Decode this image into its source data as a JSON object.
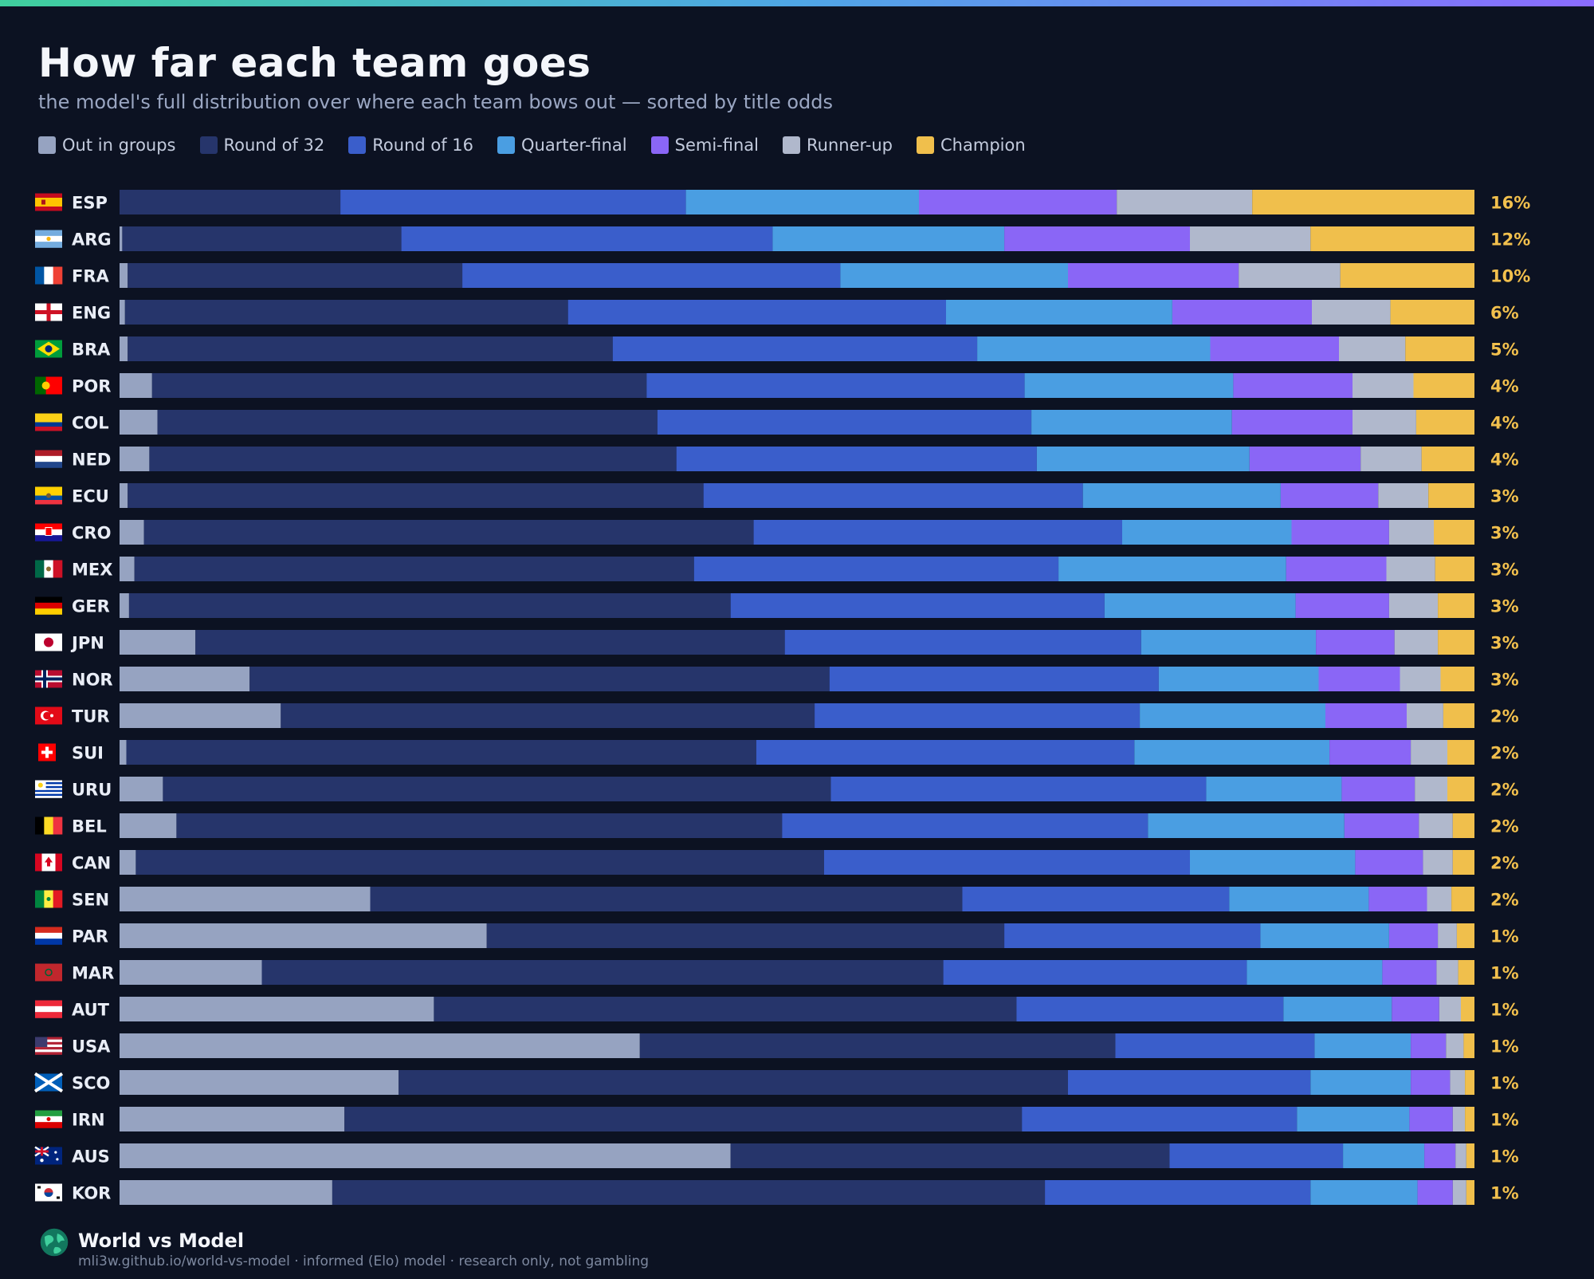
{
  "header": {
    "title": "How far each team goes",
    "subtitle": "the model's full distribution over where each team bows out — sorted by title odds"
  },
  "footer": {
    "brand": "World vs Model",
    "meta": "mli3w.github.io/world-vs-model · informed (Elo) model · research only, not gambling"
  },
  "colors": {
    "background": "#0c1222",
    "label": "#e9edf6",
    "percent": "#f2c04d"
  },
  "chart_data": {
    "type": "bar",
    "orientation": "horizontal",
    "stacked": true,
    "normalized": true,
    "title": "How far each team goes",
    "subtitle": "the model's full distribution over where each team bows out — sorted by title odds",
    "legend_position": "top-left",
    "grid": false,
    "xlim": [
      0,
      100
    ],
    "unit": "%",
    "stages": [
      {
        "name": "Out in groups",
        "color": "#96a3c1"
      },
      {
        "name": "Round of 32",
        "color": "#26356b"
      },
      {
        "name": "Round of 16",
        "color": "#3a5ecb"
      },
      {
        "name": "Quarter-final",
        "color": "#4a9ee2"
      },
      {
        "name": "Semi-final",
        "color": "#8a66f6"
      },
      {
        "name": "Runner-up",
        "color": "#b0b8cc"
      },
      {
        "name": "Champion",
        "color": "#f0bf4c"
      }
    ],
    "teams": [
      {
        "code": "ESP",
        "flag": "es-flag-icon",
        "label": "16%",
        "values": [
          0.0,
          16.3,
          25.5,
          17.2,
          14.6,
          10.0,
          16.4
        ]
      },
      {
        "code": "ARG",
        "flag": "ar-flag-icon",
        "label": "12%",
        "values": [
          0.2,
          20.6,
          27.4,
          17.1,
          13.7,
          8.9,
          12.1
        ]
      },
      {
        "code": "FRA",
        "flag": "fr-flag-icon",
        "label": "10%",
        "values": [
          0.6,
          24.7,
          27.9,
          16.8,
          12.6,
          7.5,
          9.9
        ]
      },
      {
        "code": "ENG",
        "flag": "eng-flag-icon",
        "label": "6%",
        "values": [
          0.4,
          32.7,
          27.9,
          16.7,
          10.3,
          5.8,
          6.2
        ]
      },
      {
        "code": "BRA",
        "flag": "br-flag-icon",
        "label": "5%",
        "values": [
          0.6,
          35.8,
          26.9,
          17.2,
          9.5,
          4.9,
          5.1
        ]
      },
      {
        "code": "POR",
        "flag": "pt-flag-icon",
        "label": "4%",
        "values": [
          2.4,
          36.5,
          27.9,
          15.4,
          8.8,
          4.5,
          4.5
        ]
      },
      {
        "code": "COL",
        "flag": "co-flag-icon",
        "label": "4%",
        "values": [
          2.8,
          36.9,
          27.6,
          14.8,
          8.9,
          4.7,
          4.3
        ]
      },
      {
        "code": "NED",
        "flag": "nl-flag-icon",
        "label": "4%",
        "values": [
          2.2,
          38.9,
          26.6,
          15.7,
          8.2,
          4.5,
          3.9
        ]
      },
      {
        "code": "ECU",
        "flag": "ec-flag-icon",
        "label": "3%",
        "values": [
          0.6,
          42.5,
          28.0,
          14.6,
          7.2,
          3.7,
          3.4
        ]
      },
      {
        "code": "CRO",
        "flag": "hr-flag-icon",
        "label": "3%",
        "values": [
          1.8,
          45.0,
          27.2,
          12.5,
          7.2,
          3.3,
          3.0
        ]
      },
      {
        "code": "MEX",
        "flag": "mx-flag-icon",
        "label": "3%",
        "values": [
          1.1,
          41.3,
          26.9,
          16.8,
          7.4,
          3.6,
          2.9
        ]
      },
      {
        "code": "GER",
        "flag": "de-flag-icon",
        "label": "3%",
        "values": [
          0.7,
          44.4,
          27.6,
          14.1,
          6.9,
          3.6,
          2.7
        ]
      },
      {
        "code": "JPN",
        "flag": "jp-flag-icon",
        "label": "3%",
        "values": [
          5.6,
          43.5,
          26.3,
          12.9,
          5.8,
          3.2,
          2.7
        ]
      },
      {
        "code": "NOR",
        "flag": "no-flag-icon",
        "label": "3%",
        "values": [
          9.6,
          42.8,
          24.3,
          11.8,
          6.0,
          3.0,
          2.5
        ]
      },
      {
        "code": "TUR",
        "flag": "tr-flag-icon",
        "label": "2%",
        "values": [
          11.9,
          39.4,
          24.0,
          13.7,
          6.0,
          2.7,
          2.3
        ]
      },
      {
        "code": "SUI",
        "flag": "ch-flag-icon",
        "label": "2%",
        "values": [
          0.5,
          46.5,
          27.9,
          14.4,
          6.0,
          2.7,
          2.0
        ]
      },
      {
        "code": "URU",
        "flag": "uy-flag-icon",
        "label": "2%",
        "values": [
          3.2,
          49.3,
          27.7,
          10.0,
          5.4,
          2.4,
          2.0
        ]
      },
      {
        "code": "BEL",
        "flag": "be-flag-icon",
        "label": "2%",
        "values": [
          4.2,
          44.7,
          27.0,
          14.5,
          5.5,
          2.5,
          1.6
        ]
      },
      {
        "code": "CAN",
        "flag": "ca-flag-icon",
        "label": "2%",
        "values": [
          1.2,
          50.8,
          27.0,
          12.2,
          5.0,
          2.2,
          1.6
        ]
      },
      {
        "code": "SEN",
        "flag": "sn-flag-icon",
        "label": "2%",
        "values": [
          18.5,
          43.7,
          19.7,
          10.3,
          4.3,
          1.8,
          1.7
        ]
      },
      {
        "code": "PAR",
        "flag": "py-flag-icon",
        "label": "1%",
        "values": [
          27.1,
          38.2,
          18.9,
          9.5,
          3.6,
          1.4,
          1.3
        ]
      },
      {
        "code": "MAR",
        "flag": "ma-flag-icon",
        "label": "1%",
        "values": [
          10.5,
          50.3,
          22.4,
          10.0,
          4.0,
          1.6,
          1.2
        ]
      },
      {
        "code": "AUT",
        "flag": "at-flag-icon",
        "label": "1%",
        "values": [
          23.2,
          43.0,
          19.7,
          8.0,
          3.5,
          1.6,
          1.0
        ]
      },
      {
        "code": "USA",
        "flag": "us-flag-icon",
        "label": "1%",
        "values": [
          38.4,
          35.1,
          14.7,
          7.1,
          2.6,
          1.3,
          0.8
        ]
      },
      {
        "code": "SCO",
        "flag": "sco-flag-icon",
        "label": "1%",
        "values": [
          20.6,
          49.4,
          17.9,
          7.4,
          2.9,
          1.1,
          0.7
        ]
      },
      {
        "code": "IRN",
        "flag": "ir-flag-icon",
        "label": "1%",
        "values": [
          16.6,
          50.0,
          20.3,
          8.3,
          3.2,
          0.9,
          0.7
        ]
      },
      {
        "code": "AUS",
        "flag": "au-flag-icon",
        "label": "1%",
        "values": [
          45.1,
          32.4,
          12.8,
          6.0,
          2.3,
          0.8,
          0.6
        ]
      },
      {
        "code": "KOR",
        "flag": "kr-flag-icon",
        "label": "1%",
        "values": [
          15.7,
          52.6,
          19.6,
          7.9,
          2.6,
          1.0,
          0.6
        ]
      }
    ]
  }
}
